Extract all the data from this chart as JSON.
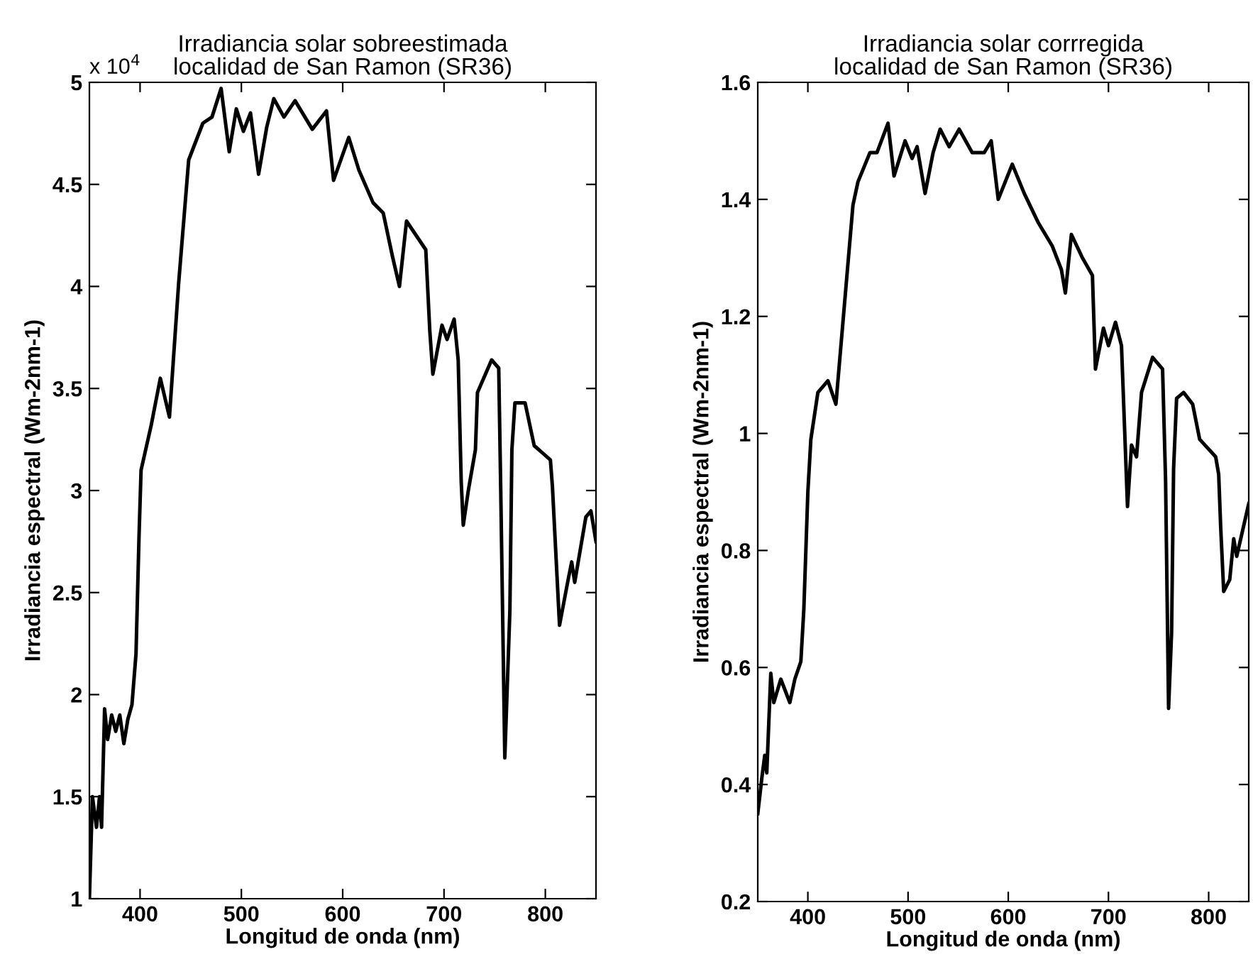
{
  "chart_data": [
    {
      "type": "line",
      "title": "Irradiancia solar sobreestimada\nlocalidad de San Ramon (SR36)",
      "xlabel": "Longitud de onda (nm)",
      "ylabel": "Irradiancia espectral (Wm-2nm-1)",
      "annotations": [
        "x 10$^{4}$"
      ],
      "series": [
        {
          "color": "#000000",
          "x": [
            350,
            353,
            357,
            360,
            362,
            365,
            368,
            372,
            376,
            380,
            384,
            388,
            392,
            396,
            399,
            401,
            411,
            420,
            429,
            438,
            448,
            462,
            471,
            480,
            488,
            495,
            502,
            509,
            517,
            525,
            532,
            542,
            553,
            570,
            584,
            591,
            606,
            616,
            630,
            640,
            649,
            656,
            663,
            682,
            686,
            689,
            698,
            703,
            710,
            714,
            717,
            719,
            724,
            731,
            733,
            747,
            754,
            756,
            760,
            765,
            767,
            770,
            780,
            789,
            805,
            807,
            814,
            822,
            826,
            829,
            840,
            845,
            850
          ],
          "values": [
            1.0,
            1.5,
            1.35,
            1.5,
            1.35,
            1.93,
            1.78,
            1.9,
            1.82,
            1.9,
            1.76,
            1.88,
            1.95,
            2.2,
            2.78,
            3.1,
            3.32,
            3.55,
            3.36,
            4.01,
            4.62,
            4.8,
            4.83,
            4.97,
            4.66,
            4.87,
            4.76,
            4.85,
            4.55,
            4.78,
            4.92,
            4.83,
            4.91,
            4.77,
            4.86,
            4.52,
            4.73,
            4.57,
            4.41,
            4.36,
            4.15,
            4.0,
            4.32,
            4.18,
            3.78,
            3.57,
            3.81,
            3.74,
            3.84,
            3.64,
            3.04,
            2.83,
            3.0,
            3.2,
            3.48,
            3.64,
            3.6,
            3.0,
            1.69,
            2.41,
            3.2,
            3.43,
            3.43,
            3.22,
            3.15,
            3.02,
            2.34,
            2.55,
            2.65,
            2.55,
            2.87,
            2.9,
            2.75
          ]
        }
      ],
      "xlim": [
        350,
        850
      ],
      "ylim": [
        1,
        5
      ],
      "xticks": [
        400,
        500,
        600,
        700,
        800
      ],
      "yticks": [
        1,
        1.5,
        2,
        2.5,
        3,
        3.5,
        4,
        4.5,
        5
      ],
      "grid": false
    },
    {
      "type": "line",
      "title": "Irradiancia solar corrregida\nlocalidad de San Ramon (SR36)",
      "xlabel": "Longitud de onda (nm)",
      "ylabel": "Irradiancia espectral (Wm-2nm-1)",
      "series": [
        {
          "color": "#000000",
          "x": [
            350,
            354,
            357,
            359,
            363,
            366,
            373,
            382,
            387,
            393,
            396,
            400,
            403,
            410,
            420,
            428,
            436,
            445,
            450,
            462,
            469,
            480,
            486,
            497,
            504,
            509,
            517,
            525,
            532,
            541,
            551,
            564,
            576,
            583,
            590,
            604,
            616,
            630,
            644,
            653,
            657,
            663,
            674,
            684,
            687,
            695,
            700,
            707,
            713,
            719,
            723,
            728,
            733,
            744,
            754,
            757,
            760,
            763,
            765,
            768,
            775,
            784,
            791,
            807,
            810,
            812,
            815,
            821,
            825,
            828,
            840
          ],
          "values": [
            0.35,
            0.41,
            0.45,
            0.42,
            0.59,
            0.54,
            0.58,
            0.54,
            0.58,
            0.61,
            0.7,
            0.9,
            0.99,
            1.07,
            1.09,
            1.05,
            1.21,
            1.39,
            1.43,
            1.48,
            1.48,
            1.53,
            1.44,
            1.5,
            1.47,
            1.49,
            1.41,
            1.48,
            1.52,
            1.49,
            1.52,
            1.48,
            1.48,
            1.5,
            1.4,
            1.46,
            1.41,
            1.36,
            1.32,
            1.28,
            1.24,
            1.34,
            1.3,
            1.27,
            1.11,
            1.18,
            1.15,
            1.19,
            1.15,
            0.875,
            0.98,
            0.96,
            1.07,
            1.13,
            1.11,
            0.92,
            0.53,
            0.66,
            0.94,
            1.06,
            1.07,
            1.05,
            0.99,
            0.96,
            0.93,
            0.84,
            0.73,
            0.75,
            0.82,
            0.79,
            0.88
          ]
        }
      ],
      "xlim": [
        350,
        840
      ],
      "ylim": [
        0.2,
        1.6
      ],
      "xticks": [
        400,
        500,
        600,
        700,
        800
      ],
      "yticks": [
        0.2,
        0.4,
        0.6,
        0.8,
        1,
        1.2,
        1.4,
        1.6
      ],
      "grid": false
    }
  ]
}
